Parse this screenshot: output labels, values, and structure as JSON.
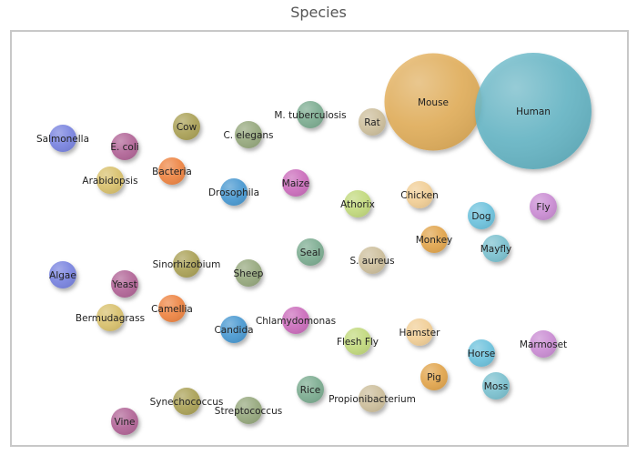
{
  "header": {
    "title": "Species"
  },
  "chart_data": {
    "type": "bubble",
    "title": "Species",
    "series": [
      {
        "name": "Mouse",
        "value": 1400,
        "color": "#E0A84E"
      },
      {
        "name": "Human",
        "value": 2000,
        "color": "#5BB0C2"
      },
      {
        "name": "Salmonella",
        "value": 12,
        "color": "#7B86E0"
      },
      {
        "name": "E. coli",
        "value": 12,
        "color": "#B36899"
      },
      {
        "name": "Cow",
        "value": 12,
        "color": "#ACA35A"
      },
      {
        "name": "C. elegans",
        "value": 12,
        "color": "#98AA80"
      },
      {
        "name": "M. tuberculosis",
        "value": 12,
        "color": "#7FAE93"
      },
      {
        "name": "Rat",
        "value": 12,
        "color": "#CEC09E"
      },
      {
        "name": "Arabidopsis",
        "value": 12,
        "color": "#D9C270"
      },
      {
        "name": "Bacteria",
        "value": 12,
        "color": "#EE8746"
      },
      {
        "name": "Drosophila",
        "value": 12,
        "color": "#4E9BD2"
      },
      {
        "name": "Maize",
        "value": 12,
        "color": "#CC6FBD"
      },
      {
        "name": "Athorix",
        "value": 12,
        "color": "#C3DA80"
      },
      {
        "name": "Chicken",
        "value": 12,
        "color": "#F1CF98"
      },
      {
        "name": "Dog",
        "value": 12,
        "color": "#6FC3DD"
      },
      {
        "name": "Fly",
        "value": 12,
        "color": "#CB8FD4"
      },
      {
        "name": "Monkey",
        "value": 12,
        "color": "#E2A751"
      },
      {
        "name": "Mayfly",
        "value": 12,
        "color": "#7EC2D0"
      },
      {
        "name": "Algae",
        "value": 12,
        "color": "#7B86E0"
      },
      {
        "name": "Yeast",
        "value": 12,
        "color": "#B36899"
      },
      {
        "name": "Sinorhizobium",
        "value": 12,
        "color": "#ACA35A"
      },
      {
        "name": "Sheep",
        "value": 12,
        "color": "#98AA80"
      },
      {
        "name": "Seal",
        "value": 12,
        "color": "#7FAE93"
      },
      {
        "name": "S. aureus",
        "value": 12,
        "color": "#CEC09E"
      },
      {
        "name": "Bermudagrass",
        "value": 12,
        "color": "#D9C270"
      },
      {
        "name": "Camellia",
        "value": 12,
        "color": "#EE8746"
      },
      {
        "name": "Candida",
        "value": 12,
        "color": "#4E9BD2"
      },
      {
        "name": "Chlamydomonas",
        "value": 12,
        "color": "#CC6FBD"
      },
      {
        "name": "Flesh Fly",
        "value": 12,
        "color": "#C3DA80"
      },
      {
        "name": "Hamster",
        "value": 12,
        "color": "#F1CF98"
      },
      {
        "name": "Horse",
        "value": 12,
        "color": "#6FC3DD"
      },
      {
        "name": "Marmoset",
        "value": 12,
        "color": "#CB8FD4"
      },
      {
        "name": "Pig",
        "value": 12,
        "color": "#E2A751"
      },
      {
        "name": "Moss",
        "value": 12,
        "color": "#7EC2D0"
      },
      {
        "name": "Synechococcus",
        "value": 12,
        "color": "#ACA35A"
      },
      {
        "name": "Vine",
        "value": 12,
        "color": "#B36899"
      },
      {
        "name": "Streptococcus",
        "value": 12,
        "color": "#98AA80"
      },
      {
        "name": "Rice",
        "value": 12,
        "color": "#7FAE93"
      },
      {
        "name": "Propionibacterium",
        "value": 12,
        "color": "#CEC09E"
      }
    ]
  }
}
